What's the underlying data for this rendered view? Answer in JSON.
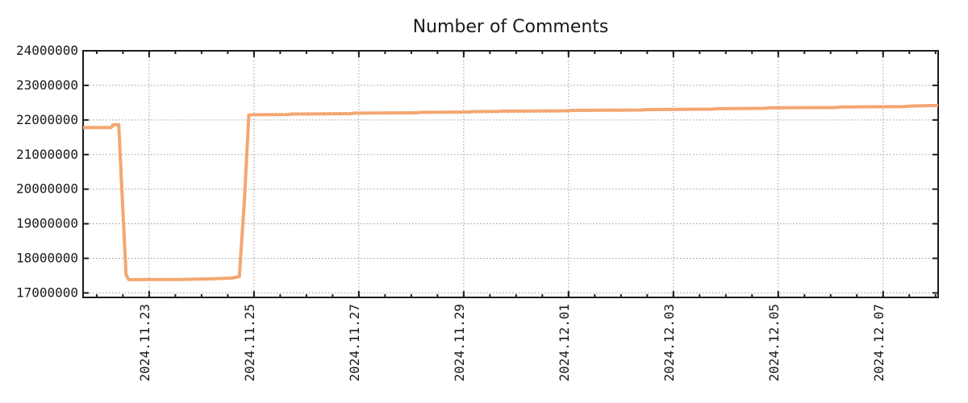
{
  "chart_data": {
    "type": "line",
    "title": "Number of Comments",
    "legend": false,
    "grid": true,
    "colors": {
      "line": "#f3a772",
      "grid": "#9a9a9a",
      "border": "#1c1c1c",
      "text": "#1a1a1a",
      "background": "#ffffff"
    },
    "x_axis": {
      "unit": "days since 2024-11-21 00:00",
      "range": [
        0.74,
        17.05
      ],
      "minor_tick_step": 0.5,
      "major_ticks": [
        {
          "offset": 2,
          "label": "2024.11.23"
        },
        {
          "offset": 4,
          "label": "2024.11.25"
        },
        {
          "offset": 6,
          "label": "2024.11.27"
        },
        {
          "offset": 8,
          "label": "2024.11.29"
        },
        {
          "offset": 10,
          "label": "2024.12.01"
        },
        {
          "offset": 12,
          "label": "2024.12.03"
        },
        {
          "offset": 14,
          "label": "2024.12.05"
        },
        {
          "offset": 16,
          "label": "2024.12.07"
        }
      ]
    },
    "y_axis": {
      "range": [
        16870000,
        24000000
      ],
      "ticks": [
        17000000,
        18000000,
        19000000,
        20000000,
        21000000,
        22000000,
        23000000,
        24000000
      ],
      "tick_labels": [
        "17000000",
        "18000000",
        "19000000",
        "20000000",
        "21000000",
        "22000000",
        "23000000",
        "24000000"
      ]
    },
    "series": [
      {
        "name": "comments",
        "color": "#f3a772",
        "points": [
          [
            0.74,
            21780000
          ],
          [
            1.28,
            21782000
          ],
          [
            1.31,
            21860000
          ],
          [
            1.42,
            21860000
          ],
          [
            1.47,
            20300000
          ],
          [
            1.56,
            17520000
          ],
          [
            1.61,
            17385000
          ],
          [
            2.6,
            17390000
          ],
          [
            3.15,
            17405000
          ],
          [
            3.58,
            17430000
          ],
          [
            3.72,
            17470000
          ],
          [
            3.82,
            19760000
          ],
          [
            3.9,
            22140000
          ],
          [
            4.0,
            22150000
          ],
          [
            4.64,
            22158000
          ],
          [
            4.72,
            22172000
          ],
          [
            5.83,
            22183000
          ],
          [
            5.92,
            22196000
          ],
          [
            7.08,
            22206000
          ],
          [
            7.18,
            22220000
          ],
          [
            8.08,
            22228000
          ],
          [
            8.18,
            22240000
          ],
          [
            8.64,
            22246000
          ],
          [
            8.74,
            22255000
          ],
          [
            9.94,
            22263000
          ],
          [
            10.06,
            22275000
          ],
          [
            11.38,
            22287000
          ],
          [
            11.5,
            22300000
          ],
          [
            12.73,
            22312000
          ],
          [
            12.85,
            22325000
          ],
          [
            13.73,
            22336000
          ],
          [
            13.85,
            22350000
          ],
          [
            15.08,
            22360000
          ],
          [
            15.2,
            22374000
          ],
          [
            16.4,
            22386000
          ],
          [
            16.52,
            22402000
          ],
          [
            17.05,
            22418000
          ]
        ]
      }
    ]
  }
}
